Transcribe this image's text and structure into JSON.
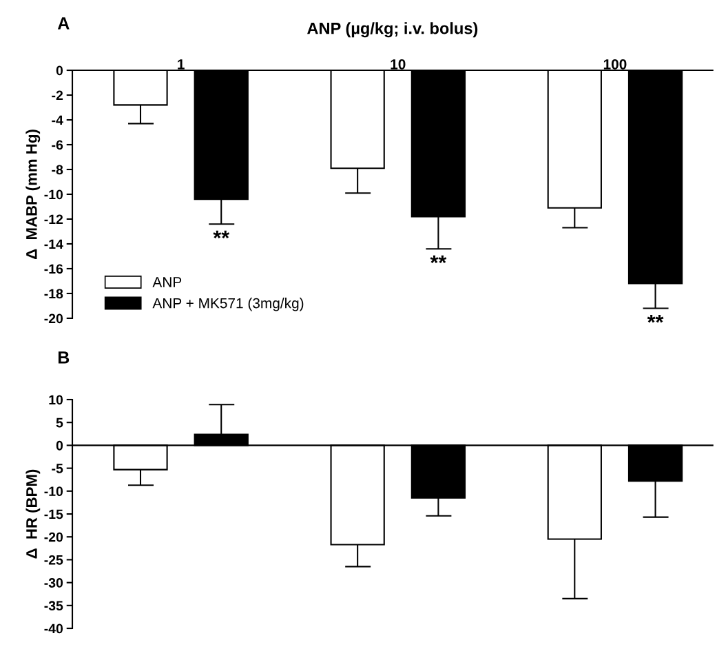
{
  "chart_data": [
    {
      "type": "bar",
      "title": "ANP (µg/kg; i.v. bolus)",
      "ylabel": "Δ  MABP (mm Hg)",
      "categories": [
        "1",
        "10",
        "100"
      ],
      "series": [
        {
          "name": "ANP",
          "color": "#ffffff",
          "values": [
            -2.8,
            -7.9,
            -11.1
          ],
          "errors": [
            [
              -4.3,
              -2.8
            ],
            [
              -9.9,
              -7.9
            ],
            [
              -12.7,
              -11.1
            ]
          ]
        },
        {
          "name": "ANP + MK571 (3mg/kg)",
          "color": "#000000",
          "values": [
            -10.4,
            -11.8,
            -17.2
          ],
          "errors": [
            [
              -12.4,
              -10.4
            ],
            [
              -14.4,
              -11.8
            ],
            [
              -19.2,
              -17.2
            ]
          ]
        }
      ],
      "ylim": [
        -20,
        0
      ],
      "yticks": [
        -20,
        -18,
        -16,
        -14,
        -12,
        -10,
        -8,
        -6,
        -4,
        -2,
        0
      ],
      "legend": "bottom left",
      "annotations": [
        "A",
        "**",
        "**",
        "**"
      ]
    },
    {
      "type": "bar",
      "ylabel": "Δ  HR (BPM)",
      "categories": [
        "1",
        "10",
        "100"
      ],
      "series": [
        {
          "color": "#ffffff",
          "values": [
            -5.3,
            -21.7,
            -20.5
          ],
          "errors": [
            [
              -8.7,
              -5.3
            ],
            [
              -26.5,
              -21.7
            ],
            [
              -33.5,
              -20.5
            ]
          ]
        },
        {
          "color": "#000000",
          "values": [
            2.4,
            -11.5,
            -7.8
          ],
          "errors": [
            [
              2.4,
              8.9
            ],
            [
              -15.4,
              -11.5
            ],
            [
              -15.7,
              -7.8
            ]
          ]
        }
      ],
      "ylim": [
        -40,
        10
      ],
      "yticks": [
        -40,
        -35,
        -30,
        -25,
        -20,
        -15,
        -10,
        -5,
        0,
        5,
        10
      ],
      "tick_labels": "y",
      "annotations": [
        "B"
      ]
    }
  ]
}
